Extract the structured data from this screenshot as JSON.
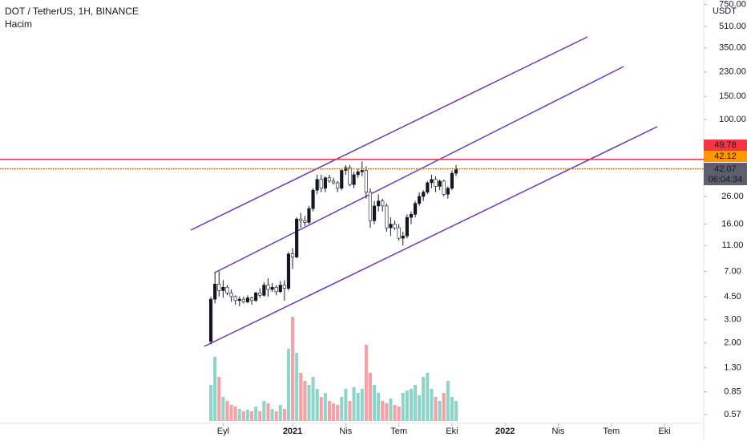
{
  "chart_data": {
    "type": "candlestick",
    "title": "DOT / TetherUS, 1H, BINANCE",
    "subtitle": "Hacim",
    "currency": "USDT",
    "log_scale": true,
    "ylim": [
      0.489,
      810
    ],
    "xlim": [
      -51.6,
      120.6
    ],
    "yticks": [
      {
        "value": 750,
        "label": "750.00"
      },
      {
        "value": 510,
        "label": "510.00"
      },
      {
        "value": 350,
        "label": "350.00"
      },
      {
        "value": 230,
        "label": "230.00"
      },
      {
        "value": 150,
        "label": "150.00"
      },
      {
        "value": 100,
        "label": "100.00"
      },
      {
        "value": 26,
        "label": "26.00"
      },
      {
        "value": 16,
        "label": "16.00"
      },
      {
        "value": 11,
        "label": "11.00"
      },
      {
        "value": 7,
        "label": "7.00"
      },
      {
        "value": 4.5,
        "label": "4.50"
      },
      {
        "value": 3,
        "label": "3.00"
      },
      {
        "value": 2,
        "label": "2.00"
      },
      {
        "value": 1.3,
        "label": "1.30"
      },
      {
        "value": 0.85,
        "label": "0.85"
      },
      {
        "value": 0.57,
        "label": "0.57"
      }
    ],
    "xticks": [
      {
        "value": 3,
        "label": "Eyl"
      },
      {
        "value": 20,
        "label": "2021"
      },
      {
        "value": 33,
        "label": "Nis"
      },
      {
        "value": 46,
        "label": "Tem"
      },
      {
        "value": 59,
        "label": "Eki"
      },
      {
        "value": 72,
        "label": "2022"
      },
      {
        "value": 85,
        "label": "Nis"
      },
      {
        "value": 98,
        "label": "Tem"
      },
      {
        "value": 111,
        "label": "Eki"
      }
    ],
    "up_color": "#131722",
    "down_color": "#ffffff",
    "volume_up_color": "#8fd4c8",
    "volume_down_color": "#f7a1a7",
    "open": [
      2.05,
      4.3,
      5.6,
      5.0,
      5.3,
      4.8,
      4.5,
      4.2,
      4.3,
      4.1,
      4.4,
      4.2,
      4.8,
      4.6,
      5.5,
      5.1,
      5.3,
      4.9,
      5.5,
      5.2,
      9.5,
      9.0,
      17.5,
      17,
      16.5,
      21,
      29,
      35,
      30,
      36,
      34,
      33,
      30,
      41,
      43,
      32,
      38,
      40,
      41,
      28,
      17,
      22,
      24,
      22,
      15,
      16,
      15,
      12.5,
      13,
      18,
      19,
      23,
      26,
      28,
      33,
      35,
      31,
      34,
      27,
      30,
      39
    ],
    "high": [
      4.5,
      6.9,
      7.0,
      6.0,
      5.5,
      5.1,
      4.6,
      4.5,
      4.5,
      4.6,
      4.5,
      4.9,
      5.2,
      5.8,
      6.2,
      5.7,
      5.5,
      5.9,
      6.0,
      9.8,
      10.5,
      18,
      19.5,
      18.5,
      22,
      30,
      38,
      38,
      37,
      38,
      36,
      34,
      42,
      45,
      45,
      40,
      42,
      48,
      44,
      30,
      24,
      27,
      25,
      23,
      18,
      17,
      16,
      14,
      19,
      20,
      24,
      28,
      29,
      34,
      38,
      37,
      35,
      35,
      31,
      41,
      45
    ],
    "low": [
      1.95,
      4.0,
      4.5,
      4.4,
      4.6,
      4.1,
      3.9,
      3.8,
      4.0,
      4.0,
      3.9,
      4.1,
      4.4,
      4.5,
      4.5,
      4.9,
      4.6,
      4.8,
      4.2,
      5.0,
      7.3,
      8.8,
      15,
      15.5,
      16,
      20,
      27,
      28,
      28,
      33,
      32,
      28,
      29,
      38,
      31,
      30,
      36,
      37,
      25,
      15,
      16,
      20,
      20,
      14,
      13,
      14.5,
      12,
      11,
      12.5,
      16,
      18,
      22,
      24,
      27,
      30,
      28,
      29,
      26,
      25,
      29,
      37
    ],
    "close": [
      4.3,
      5.6,
      5.0,
      5.3,
      4.8,
      4.5,
      4.2,
      4.3,
      4.1,
      4.4,
      4.2,
      4.8,
      4.6,
      5.5,
      5.1,
      5.3,
      4.9,
      5.5,
      5.2,
      9.5,
      9.0,
      17.5,
      17,
      16.5,
      21,
      29,
      35,
      30,
      36,
      34,
      33,
      30,
      41,
      43,
      32,
      38,
      40,
      41,
      28,
      17,
      22,
      24,
      22,
      15,
      16,
      15,
      12.5,
      13,
      18,
      19,
      23,
      26,
      28,
      33,
      35,
      31,
      34,
      27,
      30,
      39,
      42.07
    ],
    "volume": [
      45,
      80,
      55,
      30,
      25,
      20,
      18,
      15,
      12,
      14,
      12,
      18,
      12,
      25,
      22,
      15,
      12,
      20,
      15,
      90,
      130,
      85,
      60,
      50,
      45,
      55,
      40,
      30,
      35,
      25,
      22,
      20,
      30,
      40,
      25,
      42,
      35,
      40,
      95,
      60,
      45,
      35,
      25,
      22,
      28,
      20,
      18,
      35,
      38,
      40,
      45,
      32,
      55,
      60,
      40,
      30,
      25,
      35,
      50,
      30,
      25
    ],
    "levels": [
      {
        "value": 49.78,
        "label": "49.78",
        "color": "#f23645"
      },
      {
        "value": 42.12,
        "label": "42.12",
        "color": "#ff9800"
      }
    ],
    "last_price": {
      "value": 42.07,
      "label": "42.07",
      "countdown": "06:04:34",
      "color": "#5d606b"
    }
  }
}
